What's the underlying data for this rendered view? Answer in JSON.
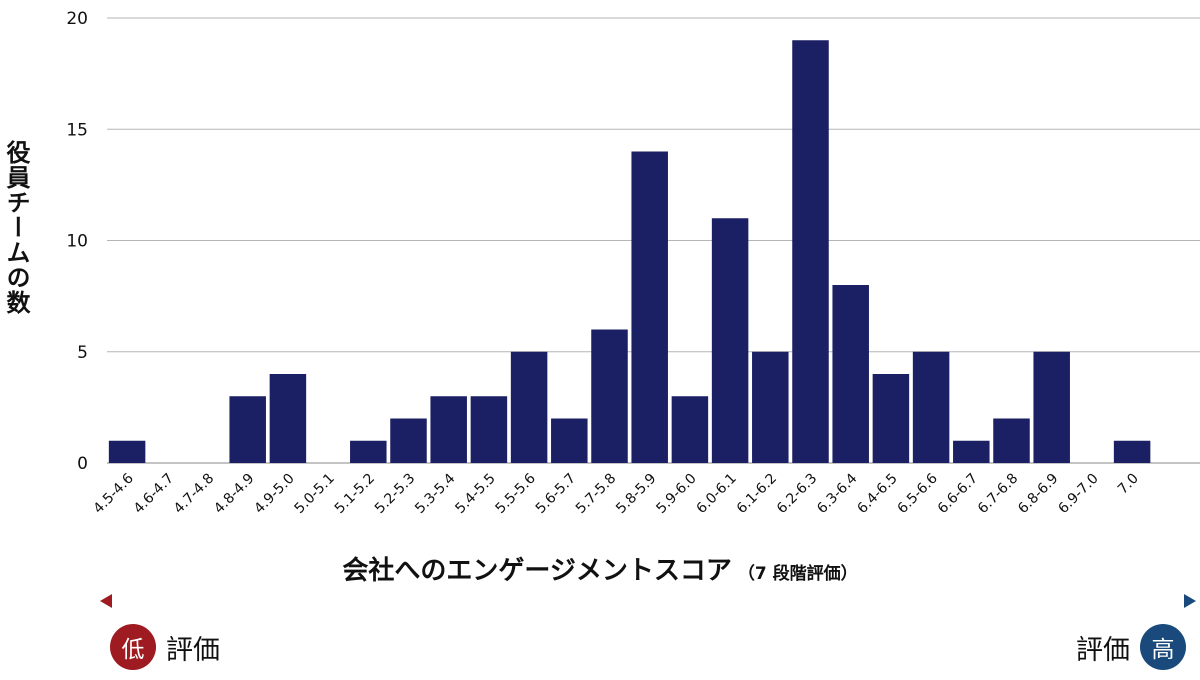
{
  "chart_data": {
    "type": "bar",
    "ylabel": "役員チームの数",
    "xlabel": "会社へのエンゲージメントスコア",
    "xlabel_note": "（7 段階評価）",
    "categories": [
      "4.5-4.6",
      "4.6-4.7",
      "4.7-4.8",
      "4.8-4.9",
      "4.9-5.0",
      "5.0-5.1",
      "5.1-5.2",
      "5.2-5.3",
      "5.3-5.4",
      "5.4-5.5",
      "5.5-5.6",
      "5.6-5.7",
      "5.7-5.8",
      "5.8-5.9",
      "5.9-6.0",
      "6.0-6.1",
      "6.1-6.2",
      "6.2-6.3",
      "6.3-6.4",
      "6.4-6.5",
      "6.5-6.6",
      "6.6-6.7",
      "6.7-6.8",
      "6.8-6.9",
      "6.9-7.0",
      "7.0"
    ],
    "values": [
      1,
      0,
      0,
      3,
      4,
      0,
      1,
      2,
      3,
      3,
      5,
      2,
      6,
      14,
      3,
      11,
      5,
      19,
      8,
      4,
      5,
      1,
      2,
      5,
      0,
      1
    ],
    "ylim": [
      0,
      20
    ],
    "yticks": [
      0,
      5,
      10,
      15,
      20
    ],
    "grid": true,
    "bar_color": "#1b1f63"
  },
  "scale": {
    "low_badge": "低",
    "low_label": "評価",
    "high_label": "評価",
    "high_badge": "高",
    "low_color": "#9e1b21",
    "high_color": "#1a4a7c"
  }
}
